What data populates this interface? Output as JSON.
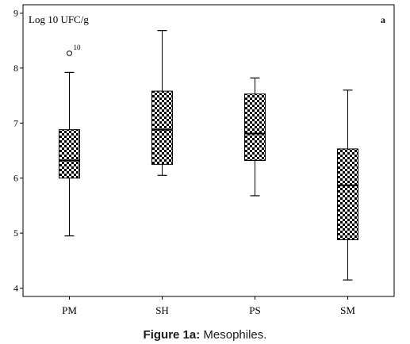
{
  "caption": {
    "label": "Figure 1a:",
    "text": " Mesophiles."
  },
  "chart_data": {
    "type": "box",
    "title": "",
    "ylabel": "Log 10 UFC/g",
    "panel_label": "a",
    "ylim": [
      3.85,
      9.15
    ],
    "yticks": [
      4,
      5,
      6,
      7,
      8,
      9
    ],
    "categories": [
      "PM",
      "SH",
      "PS",
      "SM"
    ],
    "boxes": [
      {
        "category": "PM",
        "min": 4.95,
        "q1": 6.0,
        "median": 6.32,
        "q3": 6.88,
        "max": 7.92,
        "outliers": [
          {
            "value": 8.27,
            "label": "10"
          }
        ]
      },
      {
        "category": "SH",
        "min": 6.05,
        "q1": 6.25,
        "median": 6.88,
        "q3": 7.58,
        "max": 8.68,
        "outliers": []
      },
      {
        "category": "PS",
        "min": 5.68,
        "q1": 6.32,
        "median": 6.81,
        "q3": 7.53,
        "max": 7.82,
        "outliers": []
      },
      {
        "category": "SM",
        "min": 4.15,
        "q1": 4.88,
        "median": 5.87,
        "q3": 6.53,
        "max": 7.6,
        "outliers": []
      }
    ],
    "box_fill": "checkerboard",
    "colors": {
      "ink": "#000000",
      "background": "#ffffff"
    },
    "grid": false,
    "legend": "none"
  }
}
